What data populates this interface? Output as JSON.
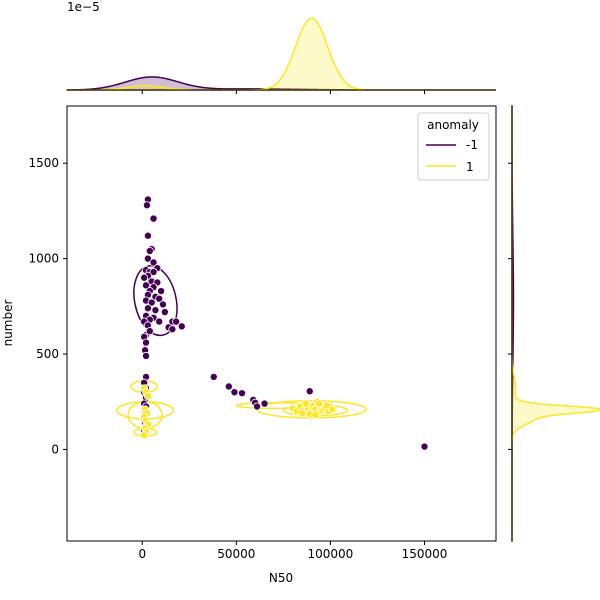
{
  "chart_data": {
    "type": "scatter",
    "title": "",
    "xlabel": "N50",
    "ylabel": "number",
    "xlim": [
      -40000,
      188000
    ],
    "ylim": [
      -480,
      1800
    ],
    "xticks": [
      0,
      50000,
      100000,
      150000
    ],
    "yticks": [
      0,
      500,
      1000,
      1500
    ],
    "top_marginal_scale_label": "1e−5",
    "legend": {
      "title": "anomaly",
      "location": "upper right",
      "entries": [
        {
          "label": "-1",
          "color": "#440154"
        },
        {
          "label": "1",
          "color": "#fde725"
        }
      ]
    },
    "series": [
      {
        "name": "-1",
        "color": "#440154",
        "points": [
          [
            3000,
            1310
          ],
          [
            2500,
            1280
          ],
          [
            6000,
            1210
          ],
          [
            3000,
            1120
          ],
          [
            5000,
            1050
          ],
          [
            4000,
            1040
          ],
          [
            3000,
            1000
          ],
          [
            6000,
            980
          ],
          [
            8000,
            950
          ],
          [
            2000,
            940
          ],
          [
            4000,
            930
          ],
          [
            6000,
            930
          ],
          [
            3000,
            910
          ],
          [
            1000,
            900
          ],
          [
            5000,
            880
          ],
          [
            8000,
            875
          ],
          [
            2000,
            860
          ],
          [
            6000,
            850
          ],
          [
            4000,
            830
          ],
          [
            10000,
            830
          ],
          [
            3000,
            810
          ],
          [
            7000,
            800
          ],
          [
            9000,
            790
          ],
          [
            2000,
            780
          ],
          [
            5000,
            770
          ],
          [
            11000,
            760
          ],
          [
            3000,
            740
          ],
          [
            7000,
            730
          ],
          [
            12000,
            720
          ],
          [
            2000,
            700
          ],
          [
            6000,
            690
          ],
          [
            4000,
            680
          ],
          [
            1000,
            670
          ],
          [
            9000,
            670
          ],
          [
            16000,
            670
          ],
          [
            18000,
            670
          ],
          [
            3000,
            650
          ],
          [
            14000,
            640
          ],
          [
            21000,
            645
          ],
          [
            16000,
            630
          ],
          [
            2000,
            600
          ],
          [
            4000,
            620
          ],
          [
            1000,
            590
          ],
          [
            2000,
            560
          ],
          [
            1500,
            520
          ],
          [
            2000,
            490
          ],
          [
            2000,
            380
          ],
          [
            1000,
            350
          ],
          [
            2000,
            320
          ],
          [
            1000,
            300
          ],
          [
            2000,
            270
          ],
          [
            1000,
            240
          ],
          [
            2000,
            225
          ],
          [
            1500,
            200
          ],
          [
            2000,
            180
          ],
          [
            1000,
            160
          ],
          [
            1500,
            140
          ],
          [
            2000,
            120
          ],
          [
            1000,
            100
          ],
          [
            38000,
            380
          ],
          [
            46000,
            330
          ],
          [
            49000,
            300
          ],
          [
            53000,
            295
          ],
          [
            59000,
            260
          ],
          [
            60000,
            245
          ],
          [
            65000,
            240
          ],
          [
            61000,
            225
          ],
          [
            89000,
            305
          ],
          [
            150000,
            15
          ]
        ]
      },
      {
        "name": "1",
        "color": "#fde725",
        "points": [
          [
            1000,
            320
          ],
          [
            2000,
            300
          ],
          [
            3000,
            280
          ],
          [
            1500,
            210
          ],
          [
            2500,
            190
          ],
          [
            1000,
            170
          ],
          [
            2000,
            150
          ],
          [
            3000,
            130
          ],
          [
            1500,
            110
          ],
          [
            2000,
            90
          ],
          [
            1000,
            75
          ],
          [
            80000,
            215
          ],
          [
            82000,
            200
          ],
          [
            84000,
            225
          ],
          [
            86000,
            205
          ],
          [
            88000,
            215
          ],
          [
            90000,
            200
          ],
          [
            91000,
            230
          ],
          [
            92000,
            210
          ],
          [
            93000,
            250
          ],
          [
            94000,
            195
          ],
          [
            95000,
            220
          ],
          [
            96000,
            205
          ],
          [
            97000,
            215
          ],
          [
            99000,
            200
          ],
          [
            100000,
            225
          ],
          [
            101000,
            210
          ],
          [
            85000,
            190
          ],
          [
            89000,
            185
          ],
          [
            94000,
            240
          ],
          [
            98000,
            230
          ],
          [
            87000,
            240
          ],
          [
            92000,
            180
          ]
        ]
      }
    ],
    "kde_contours_main": [
      {
        "series": "-1",
        "levels": [
          {
            "cx": 7000,
            "cy": 780,
            "rx": 11000,
            "ry": 185,
            "rot": -12
          }
        ]
      },
      {
        "series": "1",
        "levels": [
          {
            "cx": 1500,
            "cy": 205,
            "rx": 15000,
            "ry": 45,
            "rot": 0
          },
          {
            "cx": 1500,
            "cy": 180,
            "rx": 9000,
            "ry": 70,
            "rot": 0
          },
          {
            "cx": 1000,
            "cy": 330,
            "rx": 7000,
            "ry": 30,
            "rot": 0
          },
          {
            "cx": 1500,
            "cy": 90,
            "rx": 6000,
            "ry": 20,
            "rot": 0
          },
          {
            "cx": 90000,
            "cy": 210,
            "rx": 29000,
            "ry": 45,
            "rot": 0
          },
          {
            "cx": 92000,
            "cy": 205,
            "rx": 17000,
            "ry": 28,
            "rot": 0
          },
          {
            "cx": 70000,
            "cy": 230,
            "rx": 20000,
            "ry": 15,
            "rot": 0
          }
        ]
      }
    ],
    "marginal_x": [
      {
        "series": "-1",
        "color": "#440154",
        "peaks": [
          {
            "mu": 5000,
            "sigma": 14000,
            "height": 0.18
          },
          {
            "mu": 60000,
            "sigma": 25000,
            "height": 0.015
          }
        ]
      },
      {
        "series": "1",
        "color": "#fde725",
        "peaks": [
          {
            "mu": 1500,
            "sigma": 9000,
            "height": 0.06
          },
          {
            "mu": 90000,
            "sigma": 8500,
            "height": 1.0
          }
        ]
      }
    ],
    "marginal_y": [
      {
        "series": "-1",
        "color": "#440154",
        "peaks": [
          {
            "mu": 780,
            "sigma": 320,
            "height": 0.02
          }
        ]
      },
      {
        "series": "1",
        "color": "#fde725",
        "peaks": [
          {
            "mu": 210,
            "sigma": 18,
            "height": 1.0
          },
          {
            "mu": 175,
            "sigma": 40,
            "height": 0.35
          },
          {
            "mu": 320,
            "sigma": 60,
            "height": 0.05
          }
        ]
      }
    ]
  }
}
